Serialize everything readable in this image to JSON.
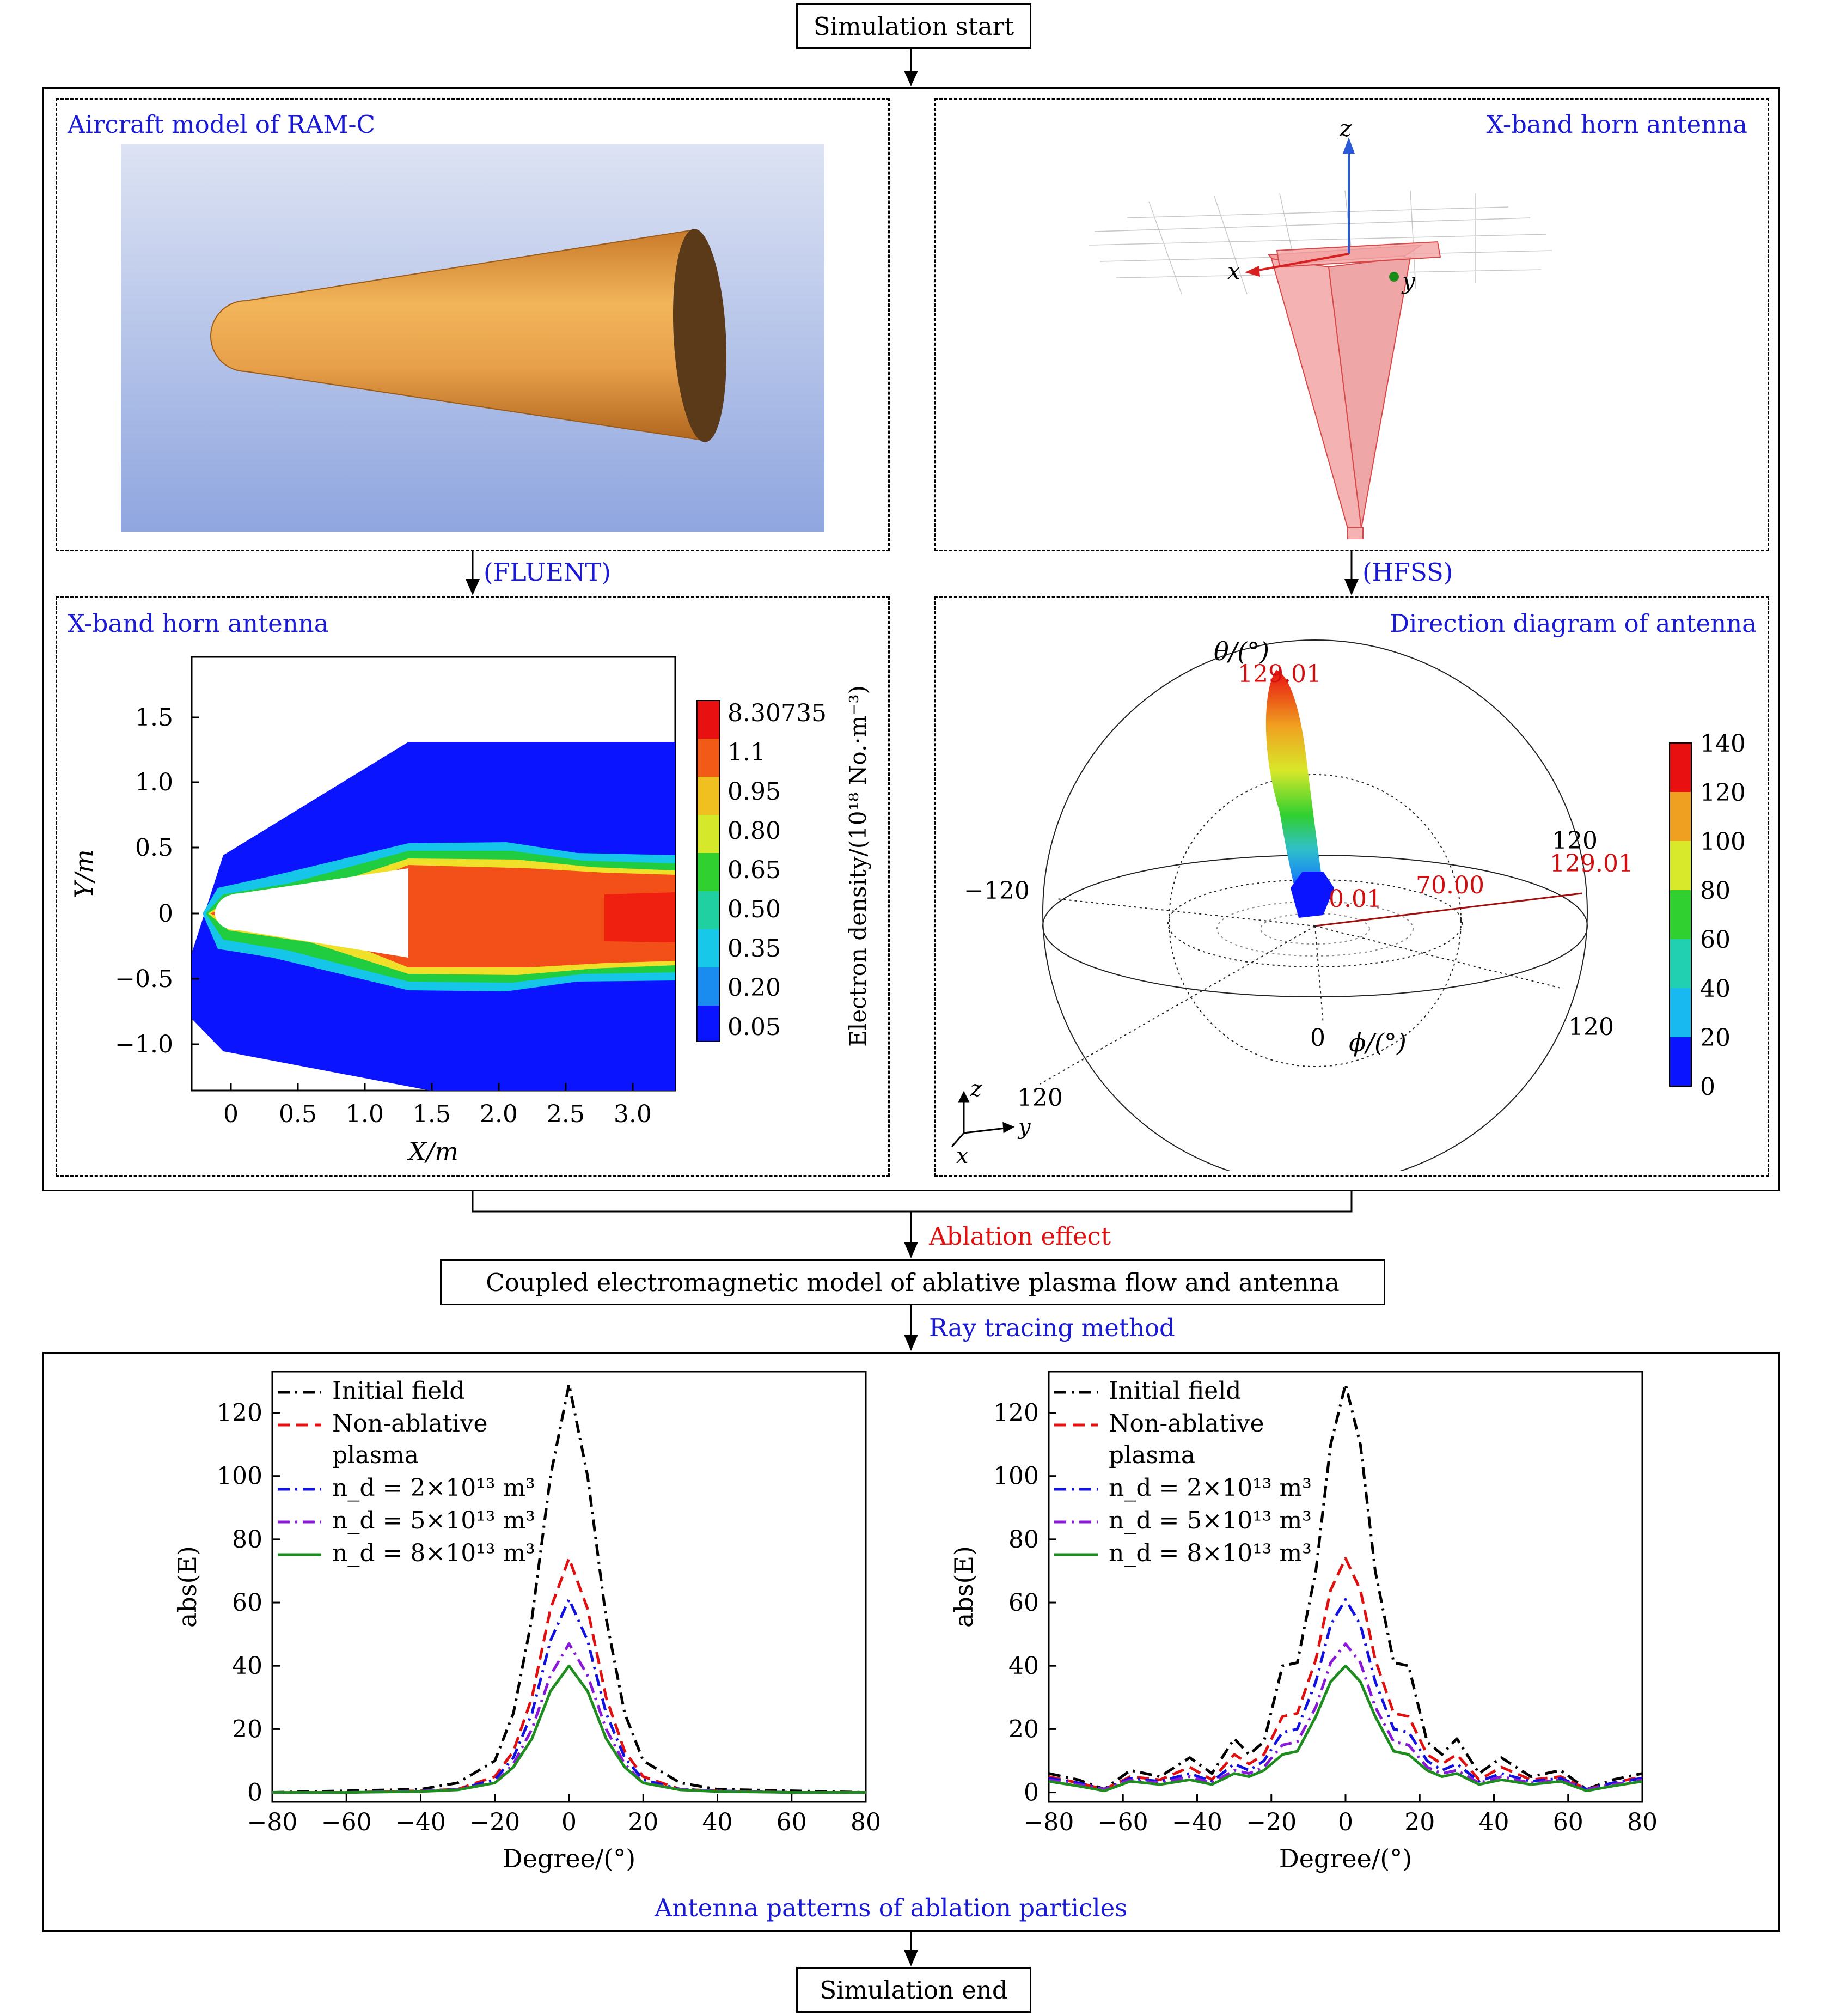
{
  "flow": {
    "start": "Simulation start",
    "end": "Simulation end",
    "step_fluent": "(FLUENT)",
    "step_hfss": "(HFSS)",
    "ablation_effect": "Ablation effect",
    "coupled_model": "Coupled electromagnetic model of ablative plasma flow and antenna",
    "ray_tracing": "Ray tracing method",
    "antenna_patterns": "Antenna patterns of ablation particles"
  },
  "panels": {
    "aircraft_title": "Aircraft model of RAM-C",
    "horn_title": "X-band horn antenna",
    "flow_title": "X-band horn antenna",
    "direction_title": "Direction diagram of antenna"
  },
  "horn_axes": {
    "z": "z",
    "x": "x",
    "y": "y"
  },
  "colors": {
    "flow_text_blue": "#1a1ad6",
    "flow_text_red": "#e01010",
    "body_orange": "#e8a04a",
    "sky_top": "#dde3f3",
    "sky_bottom": "#8fa6df"
  },
  "flowfield": {
    "xlabel": "X/m",
    "ylabel": "Y/m",
    "xticks": [
      "0",
      "0.5",
      "1.0",
      "1.5",
      "2.0",
      "2.5",
      "3.0"
    ],
    "yticks": [
      "1.5",
      "1.0",
      "0.5",
      "0",
      "−0.5",
      "−1.0"
    ],
    "colorbar_label": "Electron density/(10¹⁸ No.·m⁻³)",
    "colorbar_ticks": [
      "8.30735",
      "1.1",
      "0.95",
      "0.80",
      "0.65",
      "0.50",
      "0.35",
      "0.20",
      "0.05"
    ]
  },
  "direction": {
    "theta_label": "θ/(°)",
    "phi_label": "ϕ/(°)",
    "peak": "129.01",
    "r_labels": [
      "0.01",
      "70.00",
      "129.01"
    ],
    "angle_labels": [
      "120",
      "−120",
      "0",
      "120",
      "120"
    ],
    "colorbar_ticks": [
      "140",
      "120",
      "100",
      "80",
      "60",
      "40",
      "20",
      "0"
    ],
    "triad": {
      "z": "z",
      "y": "y",
      "x": "x"
    }
  },
  "chart_data": [
    {
      "type": "line",
      "xlabel": "Degree/(°)",
      "ylabel": "abs(E)",
      "xlim": [
        -80,
        80
      ],
      "ylim": [
        -3,
        133
      ],
      "xticks": [
        -80,
        -60,
        -40,
        -20,
        0,
        20,
        40,
        60,
        80
      ],
      "yticks": [
        0,
        20,
        40,
        60,
        80,
        100,
        120
      ],
      "x": [
        -80,
        -60,
        -40,
        -30,
        -20,
        -15,
        -10,
        -5,
        0,
        5,
        10,
        15,
        20,
        30,
        40,
        60,
        80
      ],
      "legend_position": "top-left",
      "series": [
        {
          "name": "Initial field",
          "color": "#000000",
          "dash": "dashdot",
          "values": [
            0,
            0.5,
            1,
            3,
            10,
            25,
            55,
            100,
            129,
            100,
            55,
            25,
            10,
            3,
            1,
            0.5,
            0
          ]
        },
        {
          "name": "Non-ablative plasma",
          "color": "#e01010",
          "dash": "dash",
          "values": [
            0,
            0,
            0.5,
            1,
            5,
            13,
            30,
            58,
            74,
            58,
            30,
            13,
            5,
            1,
            0.5,
            0,
            0
          ]
        },
        {
          "name": "n_d = 2×10¹³ m³",
          "color": "#1010e0",
          "dash": "dashdot",
          "values": [
            0,
            0,
            0.5,
            1,
            4,
            11,
            25,
            48,
            61,
            48,
            25,
            11,
            4,
            1,
            0.5,
            0,
            0
          ]
        },
        {
          "name": "n_d = 5×10¹³ m³",
          "color": "#8a18d8",
          "dash": "dashdot",
          "values": [
            0,
            0,
            0.4,
            1,
            3,
            9,
            20,
            37,
            47,
            37,
            20,
            9,
            3,
            1,
            0.4,
            0,
            0
          ]
        },
        {
          "name": "n_d = 8×10¹³ m³",
          "color": "#1e8c1e",
          "dash": "solid",
          "values": [
            0,
            0,
            0.3,
            0.8,
            3,
            8,
            17,
            32,
            40,
            32,
            17,
            8,
            3,
            0.8,
            0.3,
            0,
            0
          ]
        }
      ]
    },
    {
      "type": "line",
      "xlabel": "Degree/(°)",
      "ylabel": "abs(E)",
      "xlim": [
        -80,
        80
      ],
      "ylim": [
        -3,
        133
      ],
      "xticks": [
        -80,
        -60,
        -40,
        -20,
        0,
        20,
        40,
        60,
        80
      ],
      "yticks": [
        0,
        20,
        40,
        60,
        80,
        100,
        120
      ],
      "x": [
        -80,
        -72,
        -65,
        -58,
        -50,
        -42,
        -36,
        -30,
        -26,
        -22,
        -17,
        -13,
        -8,
        -4,
        0,
        4,
        8,
        13,
        17,
        22,
        26,
        30,
        36,
        42,
        50,
        58,
        65,
        72,
        80
      ],
      "legend_position": "top-left",
      "series": [
        {
          "name": "Initial field",
          "color": "#000000",
          "dash": "dashdot",
          "values": [
            6,
            4,
            1,
            7,
            5,
            11,
            6,
            17,
            12,
            16,
            40,
            41,
            70,
            110,
            129,
            110,
            70,
            41,
            40,
            16,
            12,
            17,
            6,
            11,
            5,
            7,
            1,
            4,
            6
          ]
        },
        {
          "name": "Non-ablative plasma",
          "color": "#e01010",
          "dash": "dash",
          "values": [
            5,
            3,
            1,
            5,
            4,
            8,
            4,
            12,
            9,
            12,
            24,
            25,
            42,
            64,
            74,
            64,
            42,
            25,
            24,
            12,
            9,
            12,
            4,
            8,
            4,
            5,
            1,
            3,
            5
          ]
        },
        {
          "name": "n_d = 2×10¹³ m³",
          "color": "#1010e0",
          "dash": "dashdot",
          "values": [
            4.5,
            3,
            1,
            4.5,
            3.5,
            6,
            3.5,
            9,
            7,
            10,
            19,
            20,
            35,
            53,
            61,
            53,
            35,
            20,
            19,
            10,
            7,
            9,
            3.5,
            6,
            3.5,
            4.5,
            1,
            3,
            4.5
          ]
        },
        {
          "name": "n_d = 5×10¹³ m³",
          "color": "#8a18d8",
          "dash": "dashdot",
          "values": [
            4,
            2.5,
            1,
            4,
            3,
            5,
            3,
            7,
            6,
            8,
            15,
            16,
            27,
            41,
            47,
            41,
            27,
            16,
            15,
            8,
            6,
            7,
            3,
            5,
            3,
            4,
            1,
            2.5,
            4
          ]
        },
        {
          "name": "n_d = 8×10¹³ m³",
          "color": "#1e8c1e",
          "dash": "solid",
          "values": [
            3.5,
            2,
            0.5,
            3.5,
            2.5,
            4,
            2.5,
            6,
            5,
            7,
            12,
            13,
            24,
            35,
            40,
            35,
            24,
            13,
            12,
            7,
            5,
            6,
            2.5,
            4,
            2.5,
            3.5,
            0.5,
            2,
            3.5
          ]
        }
      ]
    }
  ]
}
